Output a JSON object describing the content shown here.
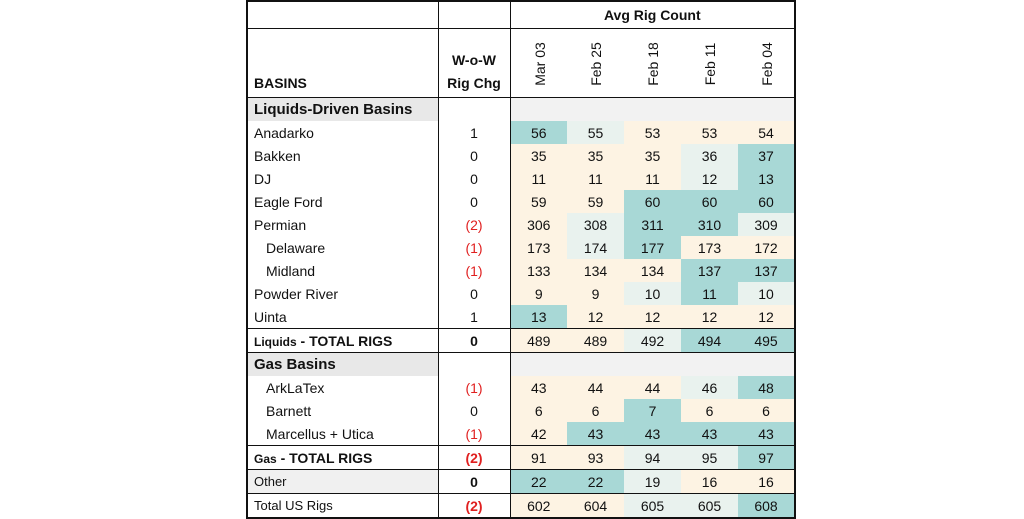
{
  "header": {
    "group_title": "Avg Rig Count",
    "basins_label": "BASINS",
    "wow_label_line1": "W-o-W",
    "wow_label_line2": "Rig Chg",
    "weeks": [
      "Mar 03",
      "Feb 25",
      "Feb 18",
      "Feb 11",
      "Feb 04"
    ]
  },
  "colors": {
    "low": "#fdf3e3",
    "mid": "#e9f2ee",
    "high": "#a8d8d6",
    "negative_text": "#e02020",
    "section_bg": "#e8e8e8"
  },
  "rows": [
    {
      "type": "section",
      "label": "Liquids-Driven Basins"
    },
    {
      "type": "data",
      "label": "Anadarko",
      "wow": "1",
      "values": [
        56,
        55,
        53,
        53,
        54
      ]
    },
    {
      "type": "data",
      "label": "Bakken",
      "wow": "0",
      "values": [
        35,
        35,
        35,
        36,
        37
      ]
    },
    {
      "type": "data",
      "label": "DJ",
      "wow": "0",
      "values": [
        11,
        11,
        11,
        12,
        13
      ]
    },
    {
      "type": "data",
      "label": "Eagle Ford",
      "wow": "0",
      "values": [
        59,
        59,
        60,
        60,
        60
      ]
    },
    {
      "type": "data",
      "label": "Permian",
      "wow": "(2)",
      "values": [
        306,
        308,
        311,
        310,
        309
      ]
    },
    {
      "type": "data",
      "label": "Delaware",
      "wow": "(1)",
      "indent": true,
      "values": [
        173,
        174,
        177,
        173,
        172
      ]
    },
    {
      "type": "data",
      "label": "Midland",
      "wow": "(1)",
      "indent": true,
      "values": [
        133,
        134,
        134,
        137,
        137
      ]
    },
    {
      "type": "data",
      "label": "Powder River",
      "wow": "0",
      "values": [
        9,
        9,
        10,
        11,
        10
      ]
    },
    {
      "type": "data",
      "label": "Uinta",
      "wow": "1",
      "values": [
        13,
        12,
        12,
        12,
        12
      ]
    },
    {
      "type": "total",
      "label_small": "Liquids",
      "label_big": " - TOTAL RIGS",
      "wow": "0",
      "values": [
        489,
        489,
        492,
        494,
        495
      ]
    },
    {
      "type": "section",
      "label": "Gas Basins"
    },
    {
      "type": "data",
      "label": "ArkLaTex",
      "wow": "(1)",
      "indent": true,
      "values": [
        43,
        44,
        44,
        46,
        48
      ]
    },
    {
      "type": "data",
      "label": "Barnett",
      "wow": "0",
      "indent": true,
      "values": [
        6,
        6,
        7,
        6,
        6
      ]
    },
    {
      "type": "data",
      "label": "Marcellus + Utica",
      "wow": "(1)",
      "indent": true,
      "values": [
        42,
        43,
        43,
        43,
        43
      ]
    },
    {
      "type": "total",
      "label_small": "Gas",
      "label_big": " - TOTAL RIGS",
      "wow": "(2)",
      "values": [
        91,
        93,
        94,
        95,
        97
      ]
    },
    {
      "type": "total2",
      "label": "Other",
      "wow": "0",
      "values": [
        22,
        22,
        19,
        16,
        16
      ]
    },
    {
      "type": "total3",
      "label": "Total US Rigs",
      "wow": "(2)",
      "values": [
        602,
        604,
        605,
        605,
        608
      ]
    }
  ]
}
